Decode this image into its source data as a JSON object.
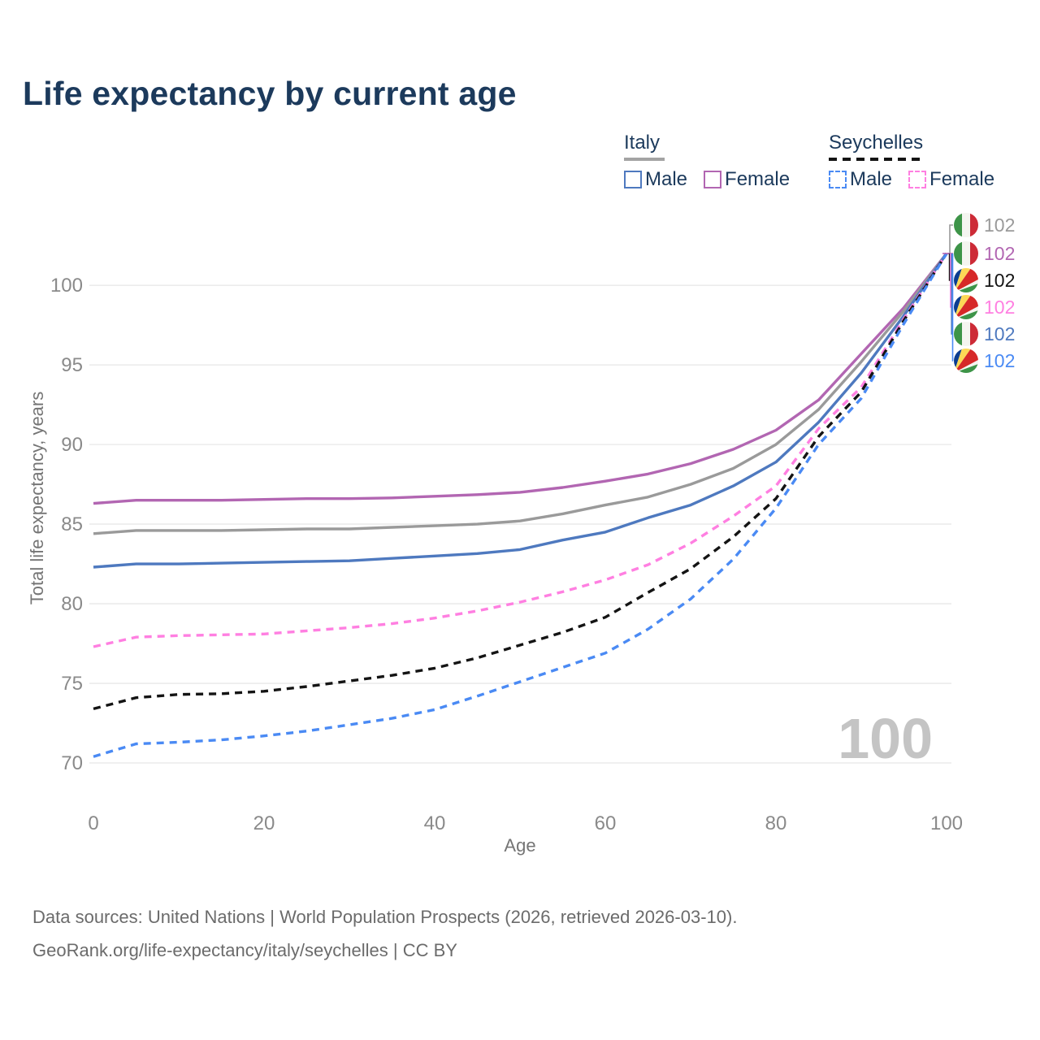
{
  "title": "Life expectancy by current age",
  "legend": {
    "groups": [
      {
        "name": "Italy",
        "underline_style": "solid",
        "underline_color": "#a3a3a3",
        "items": [
          {
            "label": "Male",
            "color": "#4e79bf",
            "dashed": false
          },
          {
            "label": "Female",
            "color": "#b266b2",
            "dashed": false
          }
        ]
      },
      {
        "name": "Seychelles",
        "underline_style": "dashed",
        "underline_color": "#141414",
        "items": [
          {
            "label": "Male",
            "color": "#4a8af4",
            "dashed": true
          },
          {
            "label": "Female",
            "color": "#ff7fe1",
            "dashed": true
          }
        ]
      }
    ]
  },
  "watermark": "100",
  "end_labels": [
    {
      "value": "102",
      "flag": "italy",
      "color": "#9a9a9a"
    },
    {
      "value": "102",
      "flag": "italy",
      "color": "#b266b2"
    },
    {
      "value": "102",
      "flag": "seychelles",
      "color": "#141414"
    },
    {
      "value": "102",
      "flag": "seychelles",
      "color": "#ff7fe1"
    },
    {
      "value": "102",
      "flag": "italy",
      "color": "#4e79bf"
    },
    {
      "value": "102",
      "flag": "seychelles",
      "color": "#4a8af4"
    }
  ],
  "footer": {
    "line1": "Data sources: United Nations | World Population Prospects (2026, retrieved 2026-03-10).",
    "line2": "GeoRank.org/life-expectancy/italy/seychelles | CC BY"
  },
  "chart_data": {
    "type": "line",
    "title": "Life expectancy by current age",
    "xlabel": "Age",
    "ylabel": "Total life expectancy, years",
    "xlim": [
      0,
      100
    ],
    "ylim": [
      70,
      102.5
    ],
    "xticks": [
      0,
      20,
      40,
      60,
      80,
      100
    ],
    "yticks": [
      70,
      75,
      80,
      85,
      90,
      95,
      100
    ],
    "grid": "horizontal",
    "legend_position": "top-right",
    "x": [
      0,
      5,
      10,
      15,
      20,
      25,
      30,
      35,
      40,
      45,
      50,
      55,
      60,
      65,
      70,
      75,
      80,
      85,
      90,
      95,
      100
    ],
    "series": [
      {
        "name": "Italy Female",
        "country": "Italy",
        "sex": "female",
        "color": "#b266b2",
        "dashed": false,
        "values": [
          86.3,
          86.5,
          86.5,
          86.5,
          86.55,
          86.6,
          86.6,
          86.65,
          86.75,
          86.85,
          87.0,
          87.3,
          87.7,
          88.15,
          88.8,
          89.7,
          90.9,
          92.8,
          95.7,
          98.6,
          102
        ]
      },
      {
        "name": "Italy Both sexes",
        "country": "Italy",
        "sex": "both",
        "color": "#9a9a9a",
        "dashed": false,
        "values": [
          84.4,
          84.6,
          84.6,
          84.6,
          84.65,
          84.7,
          84.7,
          84.8,
          84.9,
          85.0,
          85.2,
          85.65,
          86.2,
          86.7,
          87.5,
          88.5,
          90.0,
          92.2,
          95.2,
          98.4,
          102
        ]
      },
      {
        "name": "Italy Male",
        "country": "Italy",
        "sex": "male",
        "color": "#4e79bf",
        "dashed": false,
        "values": [
          82.3,
          82.5,
          82.5,
          82.55,
          82.6,
          82.65,
          82.7,
          82.85,
          83.0,
          83.15,
          83.4,
          84.0,
          84.5,
          85.4,
          86.2,
          87.4,
          88.9,
          91.4,
          94.5,
          98.1,
          102
        ]
      },
      {
        "name": "Seychelles Female",
        "country": "Seychelles",
        "sex": "female",
        "color": "#ff7fe1",
        "dashed": true,
        "values": [
          77.3,
          77.9,
          78.0,
          78.05,
          78.1,
          78.3,
          78.5,
          78.75,
          79.1,
          79.55,
          80.1,
          80.75,
          81.5,
          82.45,
          83.8,
          85.5,
          87.4,
          91.0,
          93.6,
          97.9,
          102
        ]
      },
      {
        "name": "Seychelles Both sexes",
        "country": "Seychelles",
        "sex": "both",
        "color": "#141414",
        "dashed": true,
        "values": [
          73.4,
          74.1,
          74.3,
          74.35,
          74.5,
          74.8,
          75.15,
          75.5,
          75.95,
          76.6,
          77.4,
          78.2,
          79.15,
          80.7,
          82.2,
          84.2,
          86.6,
          90.5,
          93.3,
          97.8,
          102
        ]
      },
      {
        "name": "Seychelles Male",
        "country": "Seychelles",
        "sex": "male",
        "color": "#4a8af4",
        "dashed": true,
        "values": [
          70.4,
          71.2,
          71.3,
          71.45,
          71.7,
          72.0,
          72.4,
          72.8,
          73.35,
          74.2,
          75.1,
          76.0,
          76.9,
          78.4,
          80.3,
          82.8,
          86.0,
          90.0,
          92.9,
          97.6,
          102
        ]
      }
    ],
    "end_value_labels": [
      102,
      102,
      102,
      102,
      102,
      102
    ]
  }
}
